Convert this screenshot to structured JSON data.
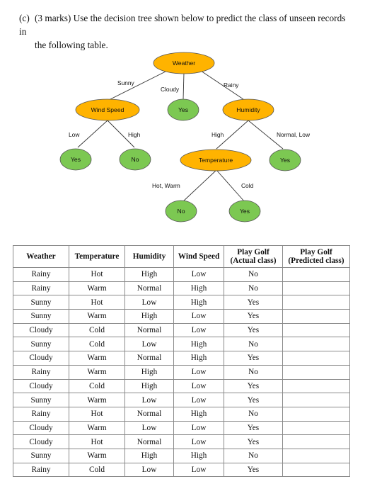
{
  "question": {
    "label": "(c)",
    "line1": "(3 marks) Use the decision tree shown below to predict the class of unseen records in",
    "line2": "the following table."
  },
  "tree": {
    "colors": {
      "attribute_node": "#ffb300",
      "leaf_node": "#7cc852",
      "node_border": "#555555",
      "edge": "#333333"
    },
    "nodes": {
      "weather": "Weather",
      "wind_speed": "Wind Speed",
      "cloudy_yes": "Yes",
      "humidity": "Humidity",
      "wind_low_yes": "Yes",
      "wind_high_no": "No",
      "temperature": "Temperature",
      "humidity_normal_yes": "Yes",
      "temp_hot_no": "No",
      "temp_cold_yes": "Yes"
    },
    "edges": {
      "sunny": "Sunny",
      "cloudy": "Cloudy",
      "rainy": "Rainy",
      "low": "Low",
      "high": "High",
      "humidity_high": "High",
      "normal_low": "Normal, Low",
      "hot_warm": "Hot, Warm",
      "cold": "Cold"
    }
  },
  "table": {
    "headers": {
      "weather": "Weather",
      "temperature": "Temperature",
      "humidity": "Humidity",
      "wind_speed": "Wind Speed",
      "actual_line1": "Play Golf",
      "actual_line2": "(Actual class)",
      "predicted_line1": "Play Golf",
      "predicted_line2": "(Predicted class)"
    },
    "rows": [
      [
        "Rainy",
        "Hot",
        "High",
        "Low",
        "No",
        ""
      ],
      [
        "Rainy",
        "Warm",
        "Normal",
        "High",
        "No",
        ""
      ],
      [
        "Sunny",
        "Hot",
        "Low",
        "High",
        "Yes",
        ""
      ],
      [
        "Sunny",
        "Warm",
        "High",
        "Low",
        "Yes",
        ""
      ],
      [
        "Cloudy",
        "Cold",
        "Normal",
        "Low",
        "Yes",
        ""
      ],
      [
        "Sunny",
        "Cold",
        "Low",
        "High",
        "No",
        ""
      ],
      [
        "Cloudy",
        "Warm",
        "Normal",
        "High",
        "Yes",
        ""
      ],
      [
        "Rainy",
        "Warm",
        "High",
        "Low",
        "No",
        ""
      ],
      [
        "Cloudy",
        "Cold",
        "High",
        "Low",
        "Yes",
        ""
      ],
      [
        "Sunny",
        "Warm",
        "Low",
        "Low",
        "Yes",
        ""
      ],
      [
        "Rainy",
        "Hot",
        "Normal",
        "High",
        "No",
        ""
      ],
      [
        "Cloudy",
        "Warm",
        "Low",
        "Low",
        "Yes",
        ""
      ],
      [
        "Cloudy",
        "Hot",
        "Normal",
        "Low",
        "Yes",
        ""
      ],
      [
        "Sunny",
        "Warm",
        "High",
        "High",
        "No",
        ""
      ],
      [
        "Rainy",
        "Cold",
        "Low",
        "Low",
        "Yes",
        ""
      ]
    ]
  }
}
